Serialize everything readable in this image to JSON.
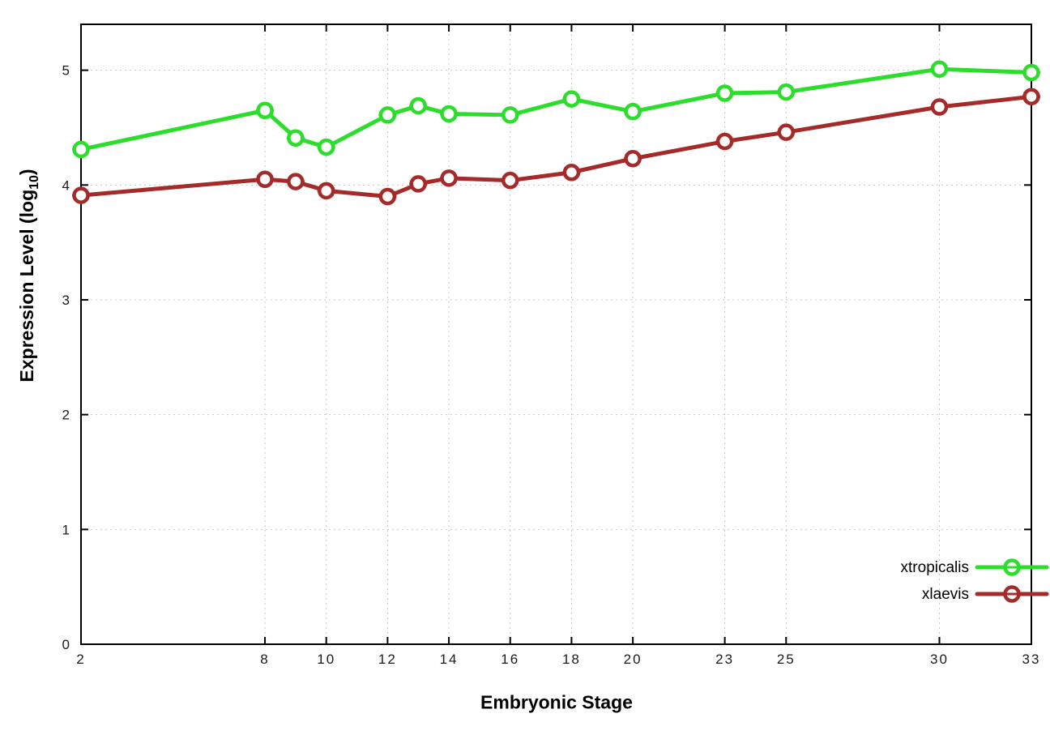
{
  "chart_data": {
    "type": "line",
    "title": "",
    "xlabel": "Embryonic Stage",
    "ylabel": "Expression Level (log10)",
    "ylabel_parts": {
      "pre": "Expression Level (log",
      "sub": "10",
      "post": ")"
    },
    "x": [
      2,
      8,
      9,
      10,
      12,
      13,
      14,
      16,
      18,
      20,
      23,
      25,
      30,
      33
    ],
    "xtick_labels": [
      "2",
      "8",
      "10",
      "12",
      "14",
      "16",
      "18",
      "20",
      "23",
      "25",
      "30",
      "33"
    ],
    "xtick_values": [
      2,
      8,
      10,
      12,
      14,
      16,
      18,
      20,
      23,
      25,
      30,
      33
    ],
    "ytick_labels": [
      "0",
      "1",
      "2",
      "3",
      "4",
      "5"
    ],
    "ytick_values": [
      0,
      1,
      2,
      3,
      4,
      5
    ],
    "xlim": [
      2,
      33
    ],
    "ylim": [
      0,
      5.4
    ],
    "grid": true,
    "legend_position": "bottom-right",
    "series": [
      {
        "name": "xtropicalis",
        "color": "#2cdd2c",
        "marker": "open-circle",
        "values": [
          4.31,
          4.65,
          4.41,
          4.33,
          4.61,
          4.69,
          4.62,
          4.61,
          4.75,
          4.64,
          4.8,
          4.81,
          5.01,
          4.98
        ]
      },
      {
        "name": "xlaevis",
        "color": "#a52a2a",
        "marker": "open-circle",
        "values": [
          3.91,
          4.05,
          4.03,
          3.95,
          3.9,
          4.01,
          4.06,
          4.04,
          4.11,
          4.23,
          4.38,
          4.46,
          4.68,
          4.77
        ]
      }
    ],
    "colors": {
      "grid": "#c8c8c8",
      "border": "#000000",
      "tick_text": "#1a1a1a"
    }
  }
}
